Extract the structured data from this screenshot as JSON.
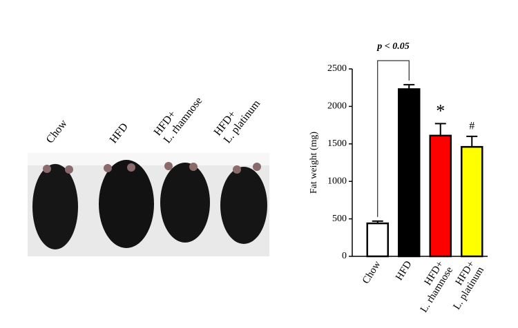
{
  "photo": {
    "labels": [
      "Chow",
      "HFD",
      "HFD+\nL. rhamnose",
      "HFD+\nL. platinum"
    ]
  },
  "chart_data": {
    "type": "bar",
    "y_label": "Fat weight (mg)",
    "categories": [
      "Chow",
      "HFD",
      "HFD+\nL. rhamnose",
      "HFD+\nL. platinum"
    ],
    "values": [
      440,
      2230,
      1610,
      1460
    ],
    "errors": [
      30,
      60,
      160,
      140
    ],
    "colors": [
      "#ffffff",
      "#000000",
      "#ff0000",
      "#ffff00"
    ],
    "ylim": [
      0,
      2500
    ],
    "yticks": [
      0,
      500,
      1000,
      1500,
      2000,
      2500
    ],
    "annotations": [
      "p < 0.05",
      "*",
      "#"
    ]
  }
}
